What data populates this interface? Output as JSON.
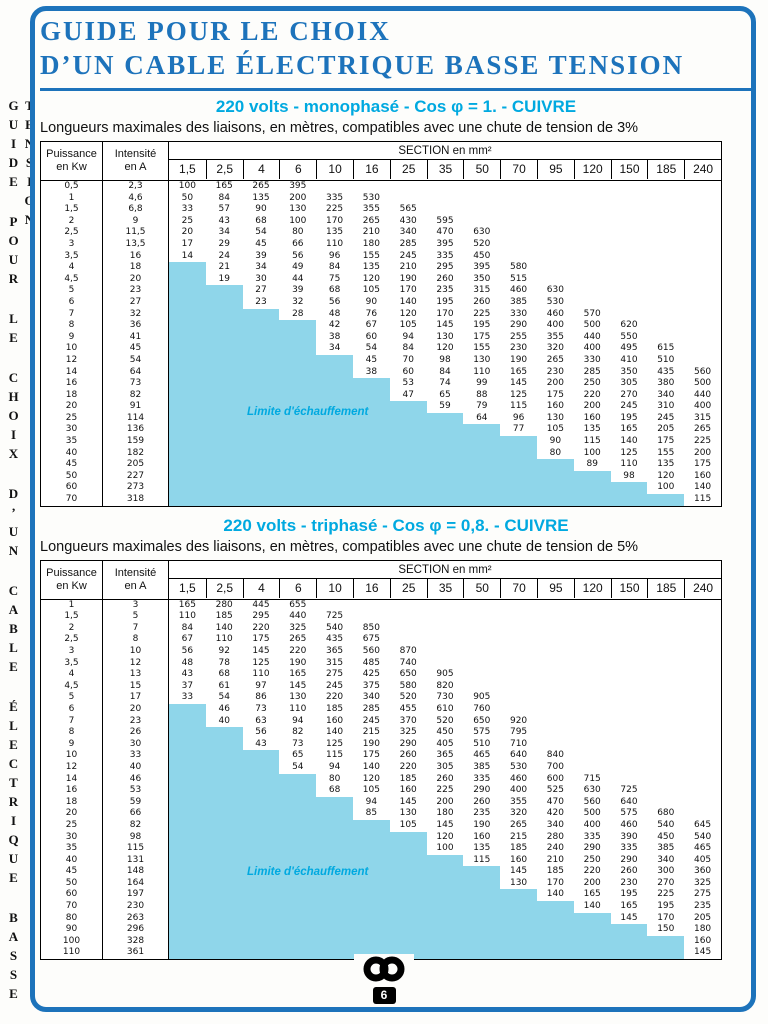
{
  "colors": {
    "blue": "#1d73bb",
    "cyan": "#00a9e0",
    "fill": "#8fd6ea"
  },
  "spine": {
    "text": "GUIDE POUR LE CHOIX D’UN CABLE ÉLECTRIQUE BASSE TENSION"
  },
  "header": {
    "title_line1": "GUIDE POUR LE CHOIX",
    "title_line2": "D’UN CABLE ÉLECTRIQUE BASSE TENSION"
  },
  "table_header": {
    "col1_line1": "Puissance",
    "col1_line2": "en Kw",
    "col2_line1": "Intensité",
    "col2_line2": "en A",
    "section_label": "SECTION en mm²"
  },
  "limit_label": "Limite d'échauffement",
  "footer": {
    "page_number": "6",
    "logo": "interlocked-rings-logo"
  },
  "tables": [
    {
      "heading": "220 volts - monophasé - Cos φ = 1. - CUIVRE",
      "subtitle": "Longueurs maximales des liaisons, en mètres, compatibles avec une chute de tension de 3%",
      "sections": [
        "1,5",
        "2,5",
        "4",
        "6",
        "10",
        "16",
        "25",
        "35",
        "50",
        "70",
        "95",
        "120",
        "150",
        "185",
        "240"
      ],
      "rows": [
        {
          "kw": "0,5",
          "a": "2,3",
          "start": 0,
          "values": [
            100,
            165,
            265,
            395
          ]
        },
        {
          "kw": "1",
          "a": "4,6",
          "start": 0,
          "values": [
            50,
            84,
            135,
            200,
            335,
            530
          ]
        },
        {
          "kw": "1,5",
          "a": "6,8",
          "start": 0,
          "values": [
            33,
            57,
            90,
            130,
            225,
            355,
            565
          ]
        },
        {
          "kw": "2",
          "a": "9",
          "start": 0,
          "values": [
            25,
            43,
            68,
            100,
            170,
            265,
            430,
            595
          ]
        },
        {
          "kw": "2,5",
          "a": "11,5",
          "start": 0,
          "values": [
            20,
            34,
            54,
            80,
            135,
            210,
            340,
            470,
            630
          ]
        },
        {
          "kw": "3",
          "a": "13,5",
          "start": 0,
          "values": [
            17,
            29,
            45,
            66,
            110,
            180,
            285,
            395,
            520
          ]
        },
        {
          "kw": "3,5",
          "a": "16",
          "start": 0,
          "values": [
            14,
            24,
            39,
            56,
            96,
            155,
            245,
            335,
            450
          ]
        },
        {
          "kw": "4",
          "a": "18",
          "start": 1,
          "values": [
            21,
            34,
            49,
            84,
            135,
            210,
            295,
            395,
            580
          ]
        },
        {
          "kw": "4,5",
          "a": "20",
          "start": 1,
          "values": [
            19,
            30,
            44,
            75,
            120,
            190,
            260,
            350,
            515
          ]
        },
        {
          "kw": "5",
          "a": "23",
          "start": 2,
          "values": [
            27,
            39,
            68,
            105,
            170,
            235,
            315,
            460,
            630
          ]
        },
        {
          "kw": "6",
          "a": "27",
          "start": 2,
          "values": [
            23,
            32,
            56,
            90,
            140,
            195,
            260,
            385,
            530
          ]
        },
        {
          "kw": "7",
          "a": "32",
          "start": 3,
          "values": [
            28,
            48,
            76,
            120,
            170,
            225,
            330,
            460,
            570
          ]
        },
        {
          "kw": "8",
          "a": "36",
          "start": 4,
          "values": [
            42,
            67,
            105,
            145,
            195,
            290,
            400,
            500,
            620
          ]
        },
        {
          "kw": "9",
          "a": "41",
          "start": 4,
          "values": [
            38,
            60,
            94,
            130,
            175,
            255,
            355,
            440,
            550
          ]
        },
        {
          "kw": "10",
          "a": "45",
          "start": 4,
          "values": [
            34,
            54,
            84,
            120,
            155,
            230,
            320,
            400,
            495,
            615
          ]
        },
        {
          "kw": "12",
          "a": "54",
          "start": 5,
          "values": [
            45,
            70,
            98,
            130,
            190,
            265,
            330,
            410,
            510
          ]
        },
        {
          "kw": "14",
          "a": "64",
          "start": 5,
          "values": [
            38,
            60,
            84,
            110,
            165,
            230,
            285,
            350,
            435,
            560
          ]
        },
        {
          "kw": "16",
          "a": "73",
          "start": 6,
          "values": [
            53,
            74,
            99,
            145,
            200,
            250,
            305,
            380,
            500
          ]
        },
        {
          "kw": "18",
          "a": "82",
          "start": 6,
          "values": [
            47,
            65,
            88,
            125,
            175,
            220,
            270,
            340,
            440
          ]
        },
        {
          "kw": "20",
          "a": "91",
          "start": 7,
          "values": [
            59,
            79,
            115,
            160,
            200,
            245,
            310,
            400
          ]
        },
        {
          "kw": "25",
          "a": "114",
          "start": 8,
          "values": [
            64,
            96,
            130,
            160,
            195,
            245,
            315
          ]
        },
        {
          "kw": "30",
          "a": "136",
          "start": 9,
          "values": [
            77,
            105,
            135,
            165,
            205,
            265
          ]
        },
        {
          "kw": "35",
          "a": "159",
          "start": 10,
          "values": [
            90,
            115,
            140,
            175,
            225
          ]
        },
        {
          "kw": "40",
          "a": "182",
          "start": 10,
          "values": [
            80,
            100,
            125,
            155,
            200
          ]
        },
        {
          "kw": "45",
          "a": "205",
          "start": 11,
          "values": [
            89,
            110,
            135,
            175
          ]
        },
        {
          "kw": "50",
          "a": "227",
          "start": 12,
          "values": [
            98,
            120,
            160
          ]
        },
        {
          "kw": "60",
          "a": "273",
          "start": 13,
          "values": [
            100,
            140
          ]
        },
        {
          "kw": "70",
          "a": "318",
          "start": 14,
          "values": [
            115
          ]
        }
      ]
    },
    {
      "heading": "220 volts - triphasé - Cos φ = 0,8. - CUIVRE",
      "subtitle": "Longueurs maximales des liaisons, en mètres, compatibles avec une chute de tension de 5%",
      "sections": [
        "1,5",
        "2,5",
        "4",
        "6",
        "10",
        "16",
        "25",
        "35",
        "50",
        "70",
        "95",
        "120",
        "150",
        "185",
        "240"
      ],
      "rows": [
        {
          "kw": "1",
          "a": "3",
          "start": 0,
          "values": [
            165,
            280,
            445,
            655
          ]
        },
        {
          "kw": "1,5",
          "a": "5",
          "start": 0,
          "values": [
            110,
            185,
            295,
            440,
            725
          ]
        },
        {
          "kw": "2",
          "a": "7",
          "start": 0,
          "values": [
            84,
            140,
            220,
            325,
            540,
            850
          ]
        },
        {
          "kw": "2,5",
          "a": "8",
          "start": 0,
          "values": [
            67,
            110,
            175,
            265,
            435,
            675
          ]
        },
        {
          "kw": "3",
          "a": "10",
          "start": 0,
          "values": [
            56,
            92,
            145,
            220,
            365,
            560,
            870
          ]
        },
        {
          "kw": "3,5",
          "a": "12",
          "start": 0,
          "values": [
            48,
            78,
            125,
            190,
            315,
            485,
            740
          ]
        },
        {
          "kw": "4",
          "a": "13",
          "start": 0,
          "values": [
            43,
            68,
            110,
            165,
            275,
            425,
            650,
            905
          ]
        },
        {
          "kw": "4,5",
          "a": "15",
          "start": 0,
          "values": [
            37,
            61,
            97,
            145,
            245,
            375,
            580,
            820
          ]
        },
        {
          "kw": "5",
          "a": "17",
          "start": 0,
          "values": [
            33,
            54,
            86,
            130,
            220,
            340,
            520,
            730,
            905
          ]
        },
        {
          "kw": "6",
          "a": "20",
          "start": 1,
          "values": [
            46,
            73,
            110,
            185,
            285,
            455,
            610,
            760
          ]
        },
        {
          "kw": "7",
          "a": "23",
          "start": 1,
          "values": [
            40,
            63,
            94,
            160,
            245,
            370,
            520,
            650,
            920
          ]
        },
        {
          "kw": "8",
          "a": "26",
          "start": 2,
          "values": [
            56,
            82,
            140,
            215,
            325,
            450,
            575,
            795
          ]
        },
        {
          "kw": "9",
          "a": "30",
          "start": 2,
          "values": [
            43,
            73,
            125,
            190,
            290,
            405,
            510,
            710
          ]
        },
        {
          "kw": "10",
          "a": "33",
          "start": 3,
          "values": [
            65,
            115,
            175,
            260,
            365,
            465,
            640,
            840
          ]
        },
        {
          "kw": "12",
          "a": "40",
          "start": 3,
          "values": [
            54,
            94,
            140,
            220,
            305,
            385,
            530,
            700
          ]
        },
        {
          "kw": "14",
          "a": "46",
          "start": 4,
          "values": [
            80,
            120,
            185,
            260,
            335,
            460,
            600,
            715
          ]
        },
        {
          "kw": "16",
          "a": "53",
          "start": 4,
          "values": [
            68,
            105,
            160,
            225,
            290,
            400,
            525,
            630,
            725
          ]
        },
        {
          "kw": "18",
          "a": "59",
          "start": 5,
          "values": [
            94,
            145,
            200,
            260,
            355,
            470,
            560,
            640
          ]
        },
        {
          "kw": "20",
          "a": "66",
          "start": 5,
          "values": [
            85,
            130,
            180,
            235,
            320,
            420,
            500,
            575,
            680
          ]
        },
        {
          "kw": "25",
          "a": "82",
          "start": 6,
          "values": [
            105,
            145,
            190,
            265,
            340,
            400,
            460,
            540,
            645
          ]
        },
        {
          "kw": "30",
          "a": "98",
          "start": 7,
          "values": [
            120,
            160,
            215,
            280,
            335,
            390,
            450,
            540
          ]
        },
        {
          "kw": "35",
          "a": "115",
          "start": 7,
          "values": [
            100,
            135,
            185,
            240,
            290,
            335,
            385,
            465
          ]
        },
        {
          "kw": "40",
          "a": "131",
          "start": 8,
          "values": [
            115,
            160,
            210,
            250,
            290,
            340,
            405
          ]
        },
        {
          "kw": "45",
          "a": "148",
          "start": 9,
          "values": [
            145,
            185,
            220,
            260,
            300,
            360
          ]
        },
        {
          "kw": "50",
          "a": "164",
          "start": 9,
          "values": [
            130,
            170,
            200,
            230,
            270,
            325
          ]
        },
        {
          "kw": "60",
          "a": "197",
          "start": 10,
          "values": [
            140,
            165,
            195,
            225,
            275
          ]
        },
        {
          "kw": "70",
          "a": "230",
          "start": 11,
          "values": [
            140,
            165,
            195,
            235
          ]
        },
        {
          "kw": "80",
          "a": "263",
          "start": 12,
          "values": [
            145,
            170,
            205
          ]
        },
        {
          "kw": "90",
          "a": "296",
          "start": 13,
          "values": [
            150,
            180
          ]
        },
        {
          "kw": "100",
          "a": "328",
          "start": 14,
          "values": [
            160
          ]
        },
        {
          "kw": "110",
          "a": "361",
          "start": 14,
          "values": [
            145
          ]
        }
      ]
    }
  ]
}
